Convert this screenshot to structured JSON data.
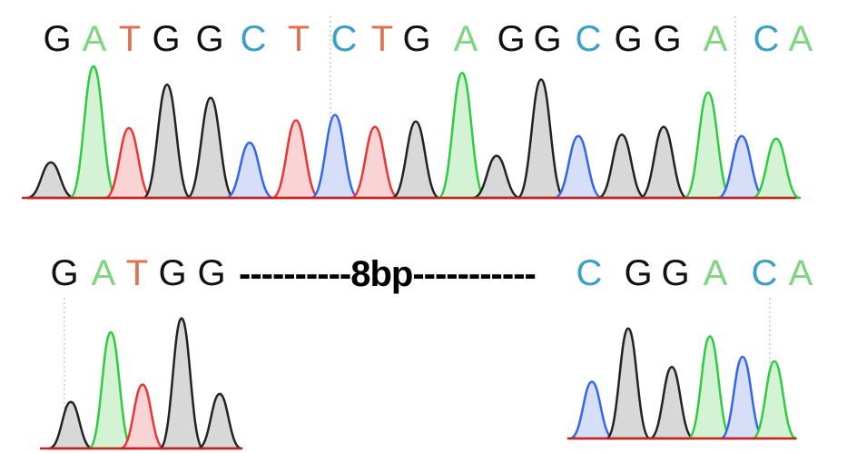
{
  "colors": {
    "G": "#111111",
    "A": "#7fd67f",
    "T": "#e07050",
    "C": "#3aa0c8",
    "trace_G": "#222222",
    "trace_A": "#2ecc40",
    "trace_T": "#ee3333",
    "trace_C": "#3366ee",
    "fill_G": "#d8d8d8",
    "fill_A": "#d4f2d4",
    "fill_T": "#f8d4d4",
    "fill_C": "#d6def8",
    "baseline": "#cc2222"
  },
  "reference": {
    "sequence": [
      "G",
      "A",
      "T",
      "G",
      "G",
      "C",
      "T",
      "C",
      "T",
      "G",
      "A",
      "G",
      "G",
      "C",
      "G",
      "G",
      "A",
      "C",
      "A"
    ],
    "peak_heights": [
      0.27,
      1.0,
      0.53,
      0.86,
      0.76,
      0.42,
      0.59,
      0.63,
      0.54,
      0.58,
      0.95,
      0.32,
      0.9,
      0.47,
      0.48,
      0.54,
      0.8,
      0.47,
      0.45
    ]
  },
  "mutant": {
    "left_sequence": [
      "G",
      "A",
      "T",
      "G",
      "G"
    ],
    "gap_label": "----------8bp-----------",
    "right_sequence": [
      "C",
      "G",
      "G",
      "A",
      "C",
      "A"
    ],
    "left_peak_heights": [
      0.4,
      1.0,
      0.55,
      1.12,
      0.47
    ],
    "right_peak_heights": [
      0.5,
      0.97,
      0.63,
      0.9,
      0.72,
      0.68
    ]
  }
}
